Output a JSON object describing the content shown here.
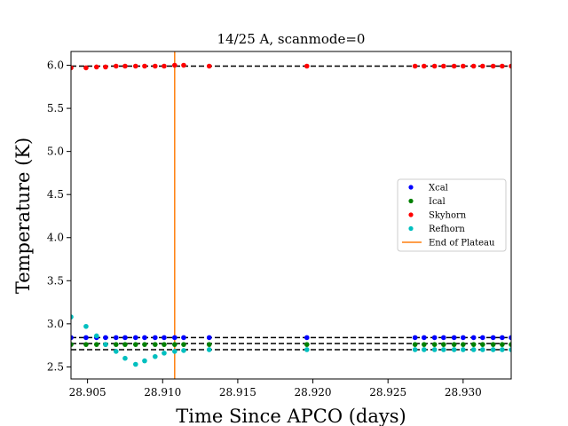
{
  "chart_data": {
    "type": "scatter",
    "title": "14/25 A, scanmode=0",
    "xlabel": "Time Since APCO (days)",
    "ylabel": "Temperature (K)",
    "xlim": [
      28.9039,
      28.9332
    ],
    "ylim": [
      2.36,
      6.16
    ],
    "xticks": [
      28.905,
      28.91,
      28.915,
      28.92,
      28.925,
      28.93
    ],
    "xtick_labels": [
      "28.905",
      "28.910",
      "28.915",
      "28.920",
      "28.925",
      "28.930"
    ],
    "yticks": [
      2.5,
      3.0,
      3.5,
      4.0,
      4.5,
      5.0,
      5.5,
      6.0
    ],
    "ytick_labels": [
      "2.5",
      "3.0",
      "3.5",
      "4.0",
      "4.5",
      "5.0",
      "5.5",
      "6.0"
    ],
    "legend_position": "center-right",
    "grid": false,
    "x": [
      28.9039,
      28.9049,
      28.9056,
      28.9062,
      28.9069,
      28.9075,
      28.9082,
      28.9088,
      28.9095,
      28.9101,
      28.9108,
      28.9114,
      28.9131,
      28.9196,
      28.9268,
      28.9274,
      28.9281,
      28.9287,
      28.9294,
      28.93,
      28.9307,
      28.9313,
      28.932,
      28.9326,
      28.9332
    ],
    "series": [
      {
        "name": "Xcal",
        "color": "#0000ff",
        "values": [
          2.84,
          2.84,
          2.84,
          2.84,
          2.84,
          2.84,
          2.84,
          2.84,
          2.84,
          2.84,
          2.84,
          2.84,
          2.84,
          2.84,
          2.84,
          2.84,
          2.84,
          2.84,
          2.84,
          2.84,
          2.84,
          2.84,
          2.84,
          2.84,
          2.84
        ]
      },
      {
        "name": "Ical",
        "color": "#008000",
        "values": [
          2.76,
          2.76,
          2.76,
          2.76,
          2.76,
          2.76,
          2.76,
          2.76,
          2.76,
          2.76,
          2.76,
          2.76,
          2.76,
          2.76,
          2.76,
          2.76,
          2.76,
          2.76,
          2.76,
          2.76,
          2.76,
          2.76,
          2.76,
          2.76,
          2.76
        ]
      },
      {
        "name": "Skyhorn",
        "color": "#ff0000",
        "values": [
          5.97,
          5.97,
          5.98,
          5.98,
          5.99,
          5.99,
          5.99,
          5.99,
          5.99,
          5.99,
          6.0,
          6.0,
          5.99,
          5.99,
          5.99,
          5.99,
          5.99,
          5.99,
          5.99,
          5.99,
          5.99,
          5.99,
          5.99,
          5.99,
          5.99
        ]
      },
      {
        "name": "Refhorn",
        "color": "#00bfbf",
        "values": [
          3.08,
          2.97,
          2.86,
          2.76,
          2.68,
          2.6,
          2.53,
          2.57,
          2.62,
          2.66,
          2.68,
          2.69,
          2.7,
          2.7,
          2.7,
          2.7,
          2.7,
          2.7,
          2.7,
          2.7,
          2.7,
          2.7,
          2.7,
          2.7,
          2.7
        ]
      }
    ],
    "reference_lines": [
      {
        "value": 5.99,
        "style": "dashed",
        "color": "#000000"
      },
      {
        "value": 2.84,
        "style": "dashed",
        "color": "#000000"
      },
      {
        "value": 2.77,
        "style": "dashed",
        "color": "#000000"
      },
      {
        "value": 2.7,
        "style": "dashed",
        "color": "#000000"
      }
    ],
    "vertical_line": {
      "name": "End of Plateau",
      "x": 28.9108,
      "color": "#ff7f0e"
    }
  }
}
